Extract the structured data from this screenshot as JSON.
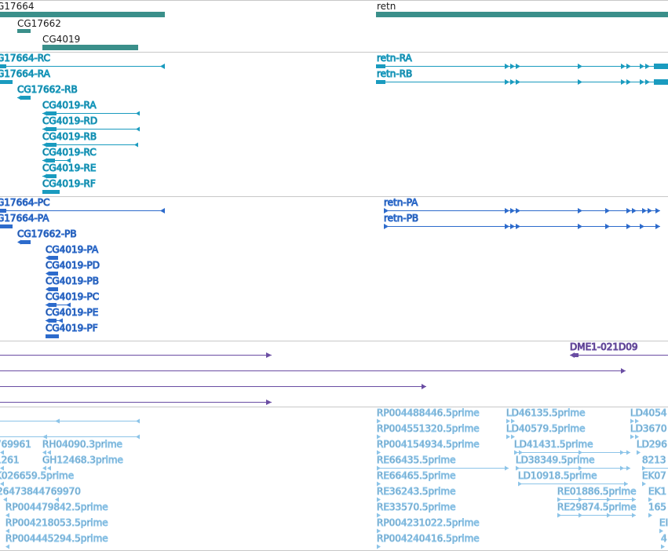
{
  "colors": {
    "gene": "#3a8f8a",
    "transcript": "#1a9bbf",
    "protein": "#2d6bcc",
    "alignment": "#6a4da3",
    "est": "#8cc4e8",
    "divider": "#c8c8c8"
  },
  "tracks": [
    {
      "name": "genes",
      "labels": [
        {
          "id": "g1",
          "text": "G17664"
        },
        {
          "id": "g2",
          "text": "CG17662"
        },
        {
          "id": "g3",
          "text": "CG4019"
        },
        {
          "id": "g4",
          "text": "retn"
        }
      ]
    },
    {
      "name": "transcripts",
      "labels": [
        {
          "id": "t1",
          "text": "G17664-RC"
        },
        {
          "id": "t2",
          "text": "G17664-RA"
        },
        {
          "id": "t3",
          "text": "CG17662-RB"
        },
        {
          "id": "t4",
          "text": "CG4019-RA"
        },
        {
          "id": "t5",
          "text": "CG4019-RD"
        },
        {
          "id": "t6",
          "text": "CG4019-RB"
        },
        {
          "id": "t7",
          "text": "CG4019-RC"
        },
        {
          "id": "t8",
          "text": "CG4019-RE"
        },
        {
          "id": "t9",
          "text": "CG4019-RF"
        },
        {
          "id": "t10",
          "text": "retn-RA"
        },
        {
          "id": "t11",
          "text": "retn-RB"
        }
      ]
    },
    {
      "name": "proteins",
      "labels": [
        {
          "id": "p1",
          "text": "G17664-PC"
        },
        {
          "id": "p2",
          "text": "G17664-PA"
        },
        {
          "id": "p3",
          "text": "CG17662-PB"
        },
        {
          "id": "p4",
          "text": "CG4019-PA"
        },
        {
          "id": "p5",
          "text": "CG4019-PD"
        },
        {
          "id": "p6",
          "text": "CG4019-PB"
        },
        {
          "id": "p7",
          "text": "CG4019-PC"
        },
        {
          "id": "p8",
          "text": "CG4019-PE"
        },
        {
          "id": "p9",
          "text": "CG4019-PF"
        },
        {
          "id": "p10",
          "text": "retn-PA"
        },
        {
          "id": "p11",
          "text": "retn-PB"
        }
      ]
    },
    {
      "name": "alignments",
      "labels": [
        {
          "id": "a1",
          "text": "DME1-021D09"
        }
      ]
    },
    {
      "name": "ests",
      "labels": [
        {
          "id": "e1",
          "text": "769961"
        },
        {
          "id": "e2",
          "text": "RH04090.3prime"
        },
        {
          "id": "e3",
          "text": "1261"
        },
        {
          "id": "e4",
          "text": "GH12468.3prime"
        },
        {
          "id": "e5",
          "text": "K026659.5prime"
        },
        {
          "id": "e6",
          "text": "26473844769970"
        },
        {
          "id": "e7",
          "text": "RP004479842.5prime"
        },
        {
          "id": "e8",
          "text": "RP004218053.5prime"
        },
        {
          "id": "e9",
          "text": "RP004445294.5prime"
        },
        {
          "id": "e10",
          "text": "RP004488446.5prime"
        },
        {
          "id": "e11",
          "text": "RP004551320.5prime"
        },
        {
          "id": "e12",
          "text": "RP004154934.5prime"
        },
        {
          "id": "e13",
          "text": "RE66435.5prime"
        },
        {
          "id": "e14",
          "text": "RE66465.5prime"
        },
        {
          "id": "e15",
          "text": "RE36243.5prime"
        },
        {
          "id": "e16",
          "text": "RE33570.5prime"
        },
        {
          "id": "e17",
          "text": "RP004231022.5prime"
        },
        {
          "id": "e18",
          "text": "RP004240416.5prime"
        },
        {
          "id": "e19",
          "text": "LD46135.5prime"
        },
        {
          "id": "e20",
          "text": "LD40579.5prime"
        },
        {
          "id": "e21",
          "text": "LD41431.5prime"
        },
        {
          "id": "e22",
          "text": "LD38349.5prime"
        },
        {
          "id": "e23",
          "text": "LD10918.5prime"
        },
        {
          "id": "e24",
          "text": "RE01886.5prime"
        },
        {
          "id": "e25",
          "text": "RE29874.5prime"
        },
        {
          "id": "e26",
          "text": "LD4054"
        },
        {
          "id": "e27",
          "text": "LD3670"
        },
        {
          "id": "e28",
          "text": "LD296"
        },
        {
          "id": "e29",
          "text": "8213"
        },
        {
          "id": "e30",
          "text": "EK07"
        },
        {
          "id": "e31",
          "text": "EK1"
        },
        {
          "id": "e32",
          "text": "165"
        },
        {
          "id": "e33",
          "text": "EI"
        },
        {
          "id": "e34",
          "text": "4"
        }
      ]
    }
  ]
}
